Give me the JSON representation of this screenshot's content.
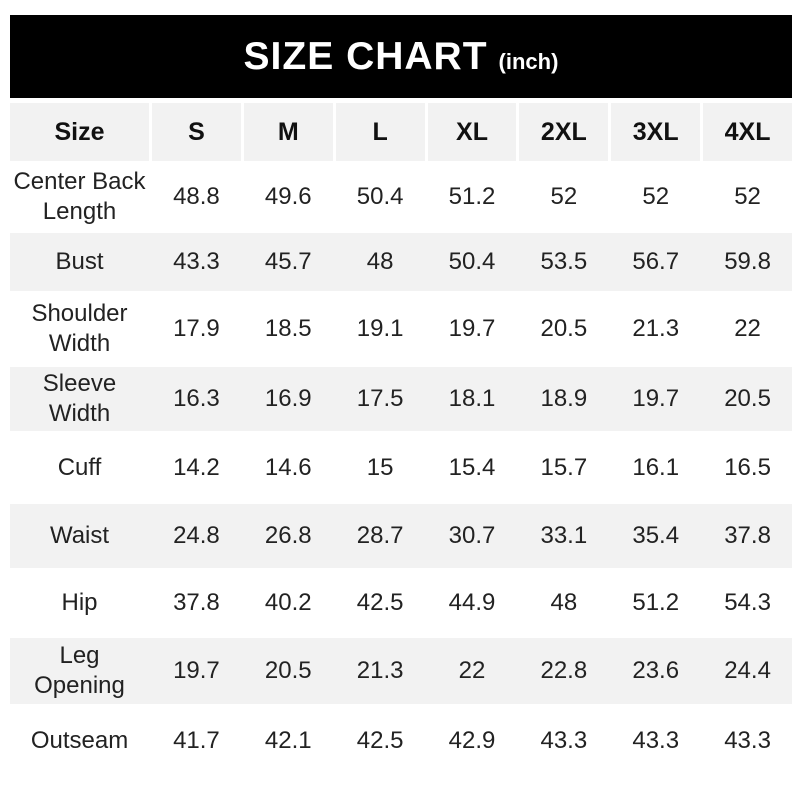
{
  "title": {
    "main": "SIZE CHART",
    "unit": "(inch)"
  },
  "table": {
    "columns": [
      "Size",
      "S",
      "M",
      "L",
      "XL",
      "2XL",
      "3XL",
      "4XL"
    ],
    "rows": [
      {
        "label": "Center Back Length",
        "values": [
          "48.8",
          "49.6",
          "50.4",
          "51.2",
          "52",
          "52",
          "52"
        ]
      },
      {
        "label": "Bust",
        "values": [
          "43.3",
          "45.7",
          "48",
          "50.4",
          "53.5",
          "56.7",
          "59.8"
        ]
      },
      {
        "label": "Shoulder Width",
        "values": [
          "17.9",
          "18.5",
          "19.1",
          "19.7",
          "20.5",
          "21.3",
          "22"
        ]
      },
      {
        "label": "Sleeve Width",
        "values": [
          "16.3",
          "16.9",
          "17.5",
          "18.1",
          "18.9",
          "19.7",
          "20.5"
        ]
      },
      {
        "label": "Cuff",
        "values": [
          "14.2",
          "14.6",
          "15",
          "15.4",
          "15.7",
          "16.1",
          "16.5"
        ]
      },
      {
        "label": "Waist",
        "values": [
          "24.8",
          "26.8",
          "28.7",
          "30.7",
          "33.1",
          "35.4",
          "37.8"
        ]
      },
      {
        "label": "Hip",
        "values": [
          "37.8",
          "40.2",
          "42.5",
          "44.9",
          "48",
          "51.2",
          "54.3"
        ]
      },
      {
        "label": "Leg Opening",
        "values": [
          "19.7",
          "20.5",
          "21.3",
          "22",
          "22.8",
          "23.6",
          "24.4"
        ]
      },
      {
        "label": "Outseam",
        "values": [
          "41.7",
          "42.1",
          "42.5",
          "42.9",
          "43.3",
          "43.3",
          "43.3"
        ]
      }
    ]
  },
  "colors": {
    "banner_bg": "#000000",
    "banner_text": "#ffffff",
    "stripe_bg": "#f2f2f2",
    "text": "#222222"
  }
}
